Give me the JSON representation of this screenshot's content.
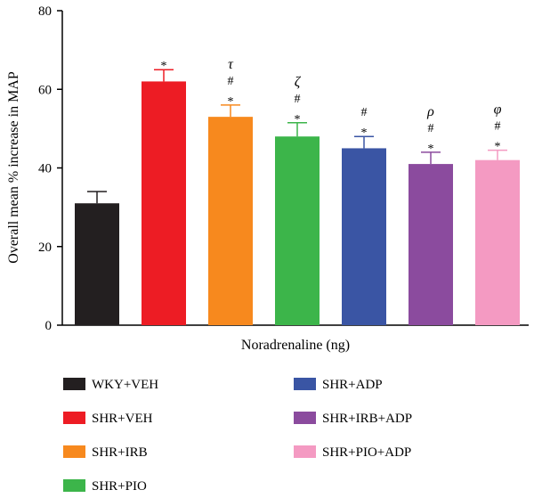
{
  "chart_data": {
    "type": "bar",
    "xlabel": "Noradrenaline (ng)",
    "ylabel": "Overall mean % increase in MAP",
    "ylim": [
      0,
      80
    ],
    "yticks": [
      0,
      20,
      40,
      60,
      80
    ],
    "grid": false,
    "legend_position": "bottom",
    "categories": [
      "WKY+VEH",
      "SHR+VEH",
      "SHR+IRB",
      "SHR+PIO",
      "SHR+ADP",
      "SHR+IRB+ADP",
      "SHR+PIO+ADP"
    ],
    "values": [
      31,
      62,
      53,
      48,
      45,
      41,
      42
    ],
    "errors": [
      3,
      3,
      3,
      3.5,
      3,
      3,
      2.5
    ],
    "colors": [
      "#231f20",
      "#ed1c24",
      "#f7891e",
      "#3cb54a",
      "#3a55a4",
      "#8b4b9e",
      "#f49ac2"
    ],
    "annotations": [
      [],
      [
        "*"
      ],
      [
        "*",
        "#",
        "τ"
      ],
      [
        "*",
        "#",
        "ζ"
      ],
      [
        "*",
        "#"
      ],
      [
        "*",
        "#",
        "ρ"
      ],
      [
        "*",
        "#",
        "φ"
      ]
    ],
    "legend": [
      {
        "label": "WKY+VEH",
        "color": "#231f20"
      },
      {
        "label": "SHR+VEH",
        "color": "#ed1c24"
      },
      {
        "label": "SHR+IRB",
        "color": "#f7891e"
      },
      {
        "label": "SHR+PIO",
        "color": "#3cb54a"
      },
      {
        "label": "SHR+ADP",
        "color": "#3a55a4"
      },
      {
        "label": "SHR+IRB+ADP",
        "color": "#8b4b9e"
      },
      {
        "label": "SHR+PIO+ADP",
        "color": "#f49ac2"
      }
    ]
  }
}
